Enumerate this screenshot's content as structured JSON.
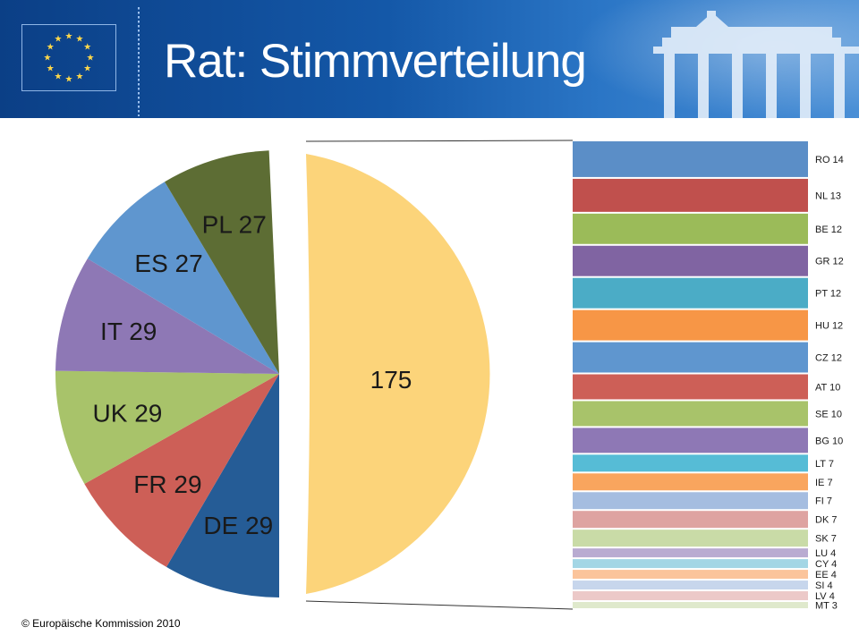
{
  "header": {
    "title": "Rat: Stimmverteilung",
    "logo": "eu-flag-icon"
  },
  "footer": {
    "copyright": "© Europäische Kommission 2010"
  },
  "colors": {
    "header_blue": "#1458a8",
    "others_wedge": "#fcd47a"
  },
  "chart_data": {
    "type": "pie",
    "title": "",
    "slices": [
      {
        "label": "DE 29",
        "value": 29,
        "color": "#255c96"
      },
      {
        "label": "FR 29",
        "value": 29,
        "color": "#cd5f57"
      },
      {
        "label": "UK 29",
        "value": 29,
        "color": "#a8c36a"
      },
      {
        "label": "IT 29",
        "value": 29,
        "color": "#8e78b5"
      },
      {
        "label": "ES 27",
        "value": 27,
        "color": "#5f96cf"
      },
      {
        "label": "PL 27",
        "value": 27,
        "color": "#5d6d34"
      },
      {
        "label": "175",
        "value": 175,
        "color": "#fcd47a"
      }
    ],
    "breakdown_of": "175",
    "breakdown": [
      {
        "label": "RO 14",
        "value": 14,
        "color": "#5b8ec7"
      },
      {
        "label": "NL 13",
        "value": 13,
        "color": "#c0504d"
      },
      {
        "label": "BE 12",
        "value": 12,
        "color": "#9bbb59"
      },
      {
        "label": "GR 12",
        "value": 12,
        "color": "#8064a2"
      },
      {
        "label": "PT 12",
        "value": 12,
        "color": "#4bacc6"
      },
      {
        "label": "HU 12",
        "value": 12,
        "color": "#f79646"
      },
      {
        "label": "CZ 12",
        "value": 12,
        "color": "#5f96cf"
      },
      {
        "label": "AT 10",
        "value": 10,
        "color": "#cd5f57"
      },
      {
        "label": "SE 10",
        "value": 10,
        "color": "#a8c36a"
      },
      {
        "label": "BG 10",
        "value": 10,
        "color": "#8e78b5"
      },
      {
        "label": "LT 7",
        "value": 7,
        "color": "#56bcd6"
      },
      {
        "label": "IE 7",
        "value": 7,
        "color": "#f9a55e"
      },
      {
        "label": "FI 7",
        "value": 7,
        "color": "#a5bde0"
      },
      {
        "label": "DK 7",
        "value": 7,
        "color": "#dea3a1"
      },
      {
        "label": "SK 7",
        "value": 7,
        "color": "#c9dba7"
      },
      {
        "label": "LU 4",
        "value": 4,
        "color": "#b9abd1"
      },
      {
        "label": "CY 4",
        "value": 4,
        "color": "#a3d6e5"
      },
      {
        "label": "EE 4",
        "value": 4,
        "color": "#fbc49b"
      },
      {
        "label": "SI 4",
        "value": 4,
        "color": "#c7d6ec"
      },
      {
        "label": "LV 4",
        "value": 4,
        "color": "#ecc9c8"
      },
      {
        "label": "MT 3",
        "value": 3,
        "color": "#dfe9cc"
      }
    ],
    "legend": "none"
  }
}
